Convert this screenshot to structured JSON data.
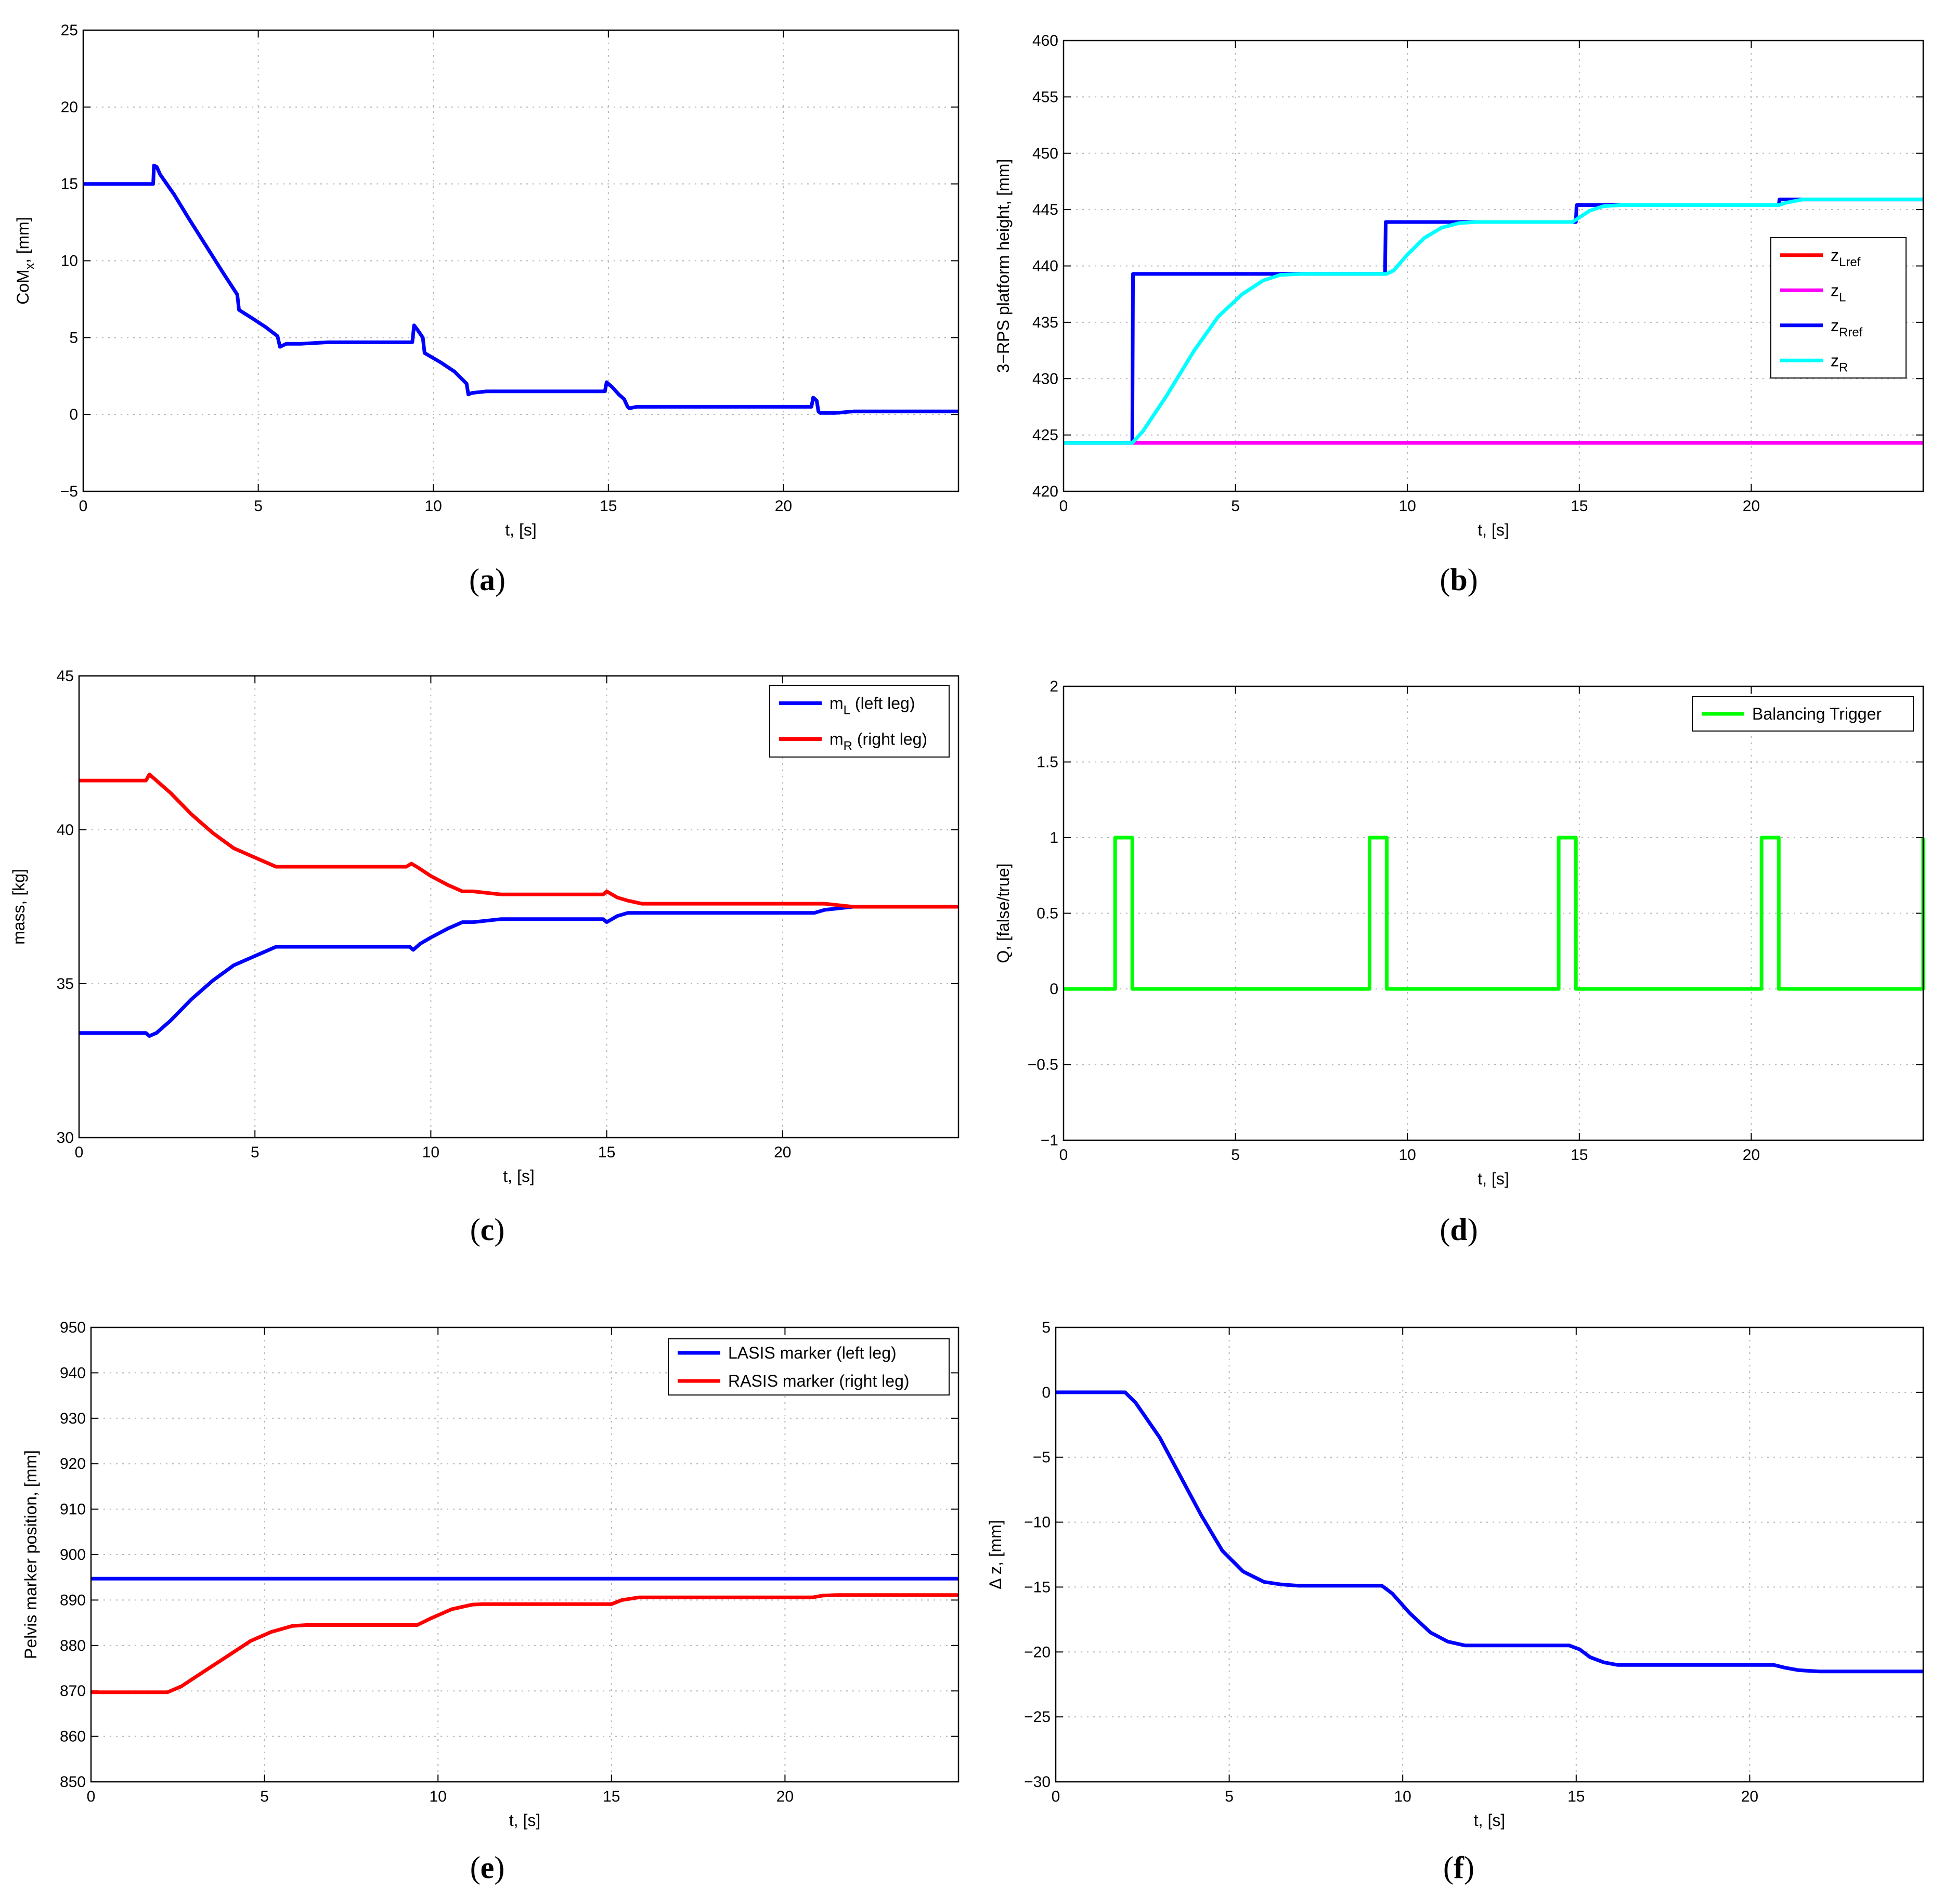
{
  "chart_data": [
    {
      "id": "a",
      "type": "line",
      "caption": "a",
      "xlabel": "t, [s]",
      "ylabel": "CoM",
      "ylabel_sub": "x",
      "ylabel_rest": ", [mm]",
      "xlim": [
        0,
        25
      ],
      "ylim": [
        -5,
        25
      ],
      "xticks": [
        0,
        5,
        10,
        15,
        20
      ],
      "yticks": [
        -5,
        0,
        5,
        10,
        15,
        20,
        25
      ],
      "legend": null,
      "series": [
        {
          "name": "CoMx",
          "color": "#0000ff",
          "x": [
            0,
            2.0,
            2.02,
            2.1,
            2.2,
            2.6,
            3.0,
            3.5,
            4.0,
            4.4,
            4.45,
            4.8,
            5.2,
            5.55,
            5.62,
            5.8,
            6.2,
            7.0,
            8.5,
            9.4,
            9.45,
            9.55,
            9.7,
            9.75,
            10.2,
            10.6,
            10.95,
            11.0,
            11.1,
            11.5,
            12.5,
            14.5,
            14.9,
            14.95,
            15.1,
            15.3,
            15.45,
            15.55,
            15.6,
            15.8,
            17.0,
            19.0,
            20.8,
            20.85,
            20.95,
            21.0,
            21.05,
            21.5,
            22.0,
            23.5,
            25
          ],
          "y": [
            15,
            15,
            16.2,
            16.1,
            15.6,
            14.3,
            12.8,
            11.0,
            9.2,
            7.8,
            6.8,
            6.3,
            5.7,
            5.1,
            4.4,
            4.6,
            4.6,
            4.7,
            4.7,
            4.7,
            5.8,
            5.5,
            5.0,
            4.0,
            3.4,
            2.8,
            2.0,
            1.3,
            1.4,
            1.5,
            1.5,
            1.5,
            1.5,
            2.1,
            1.8,
            1.3,
            1.0,
            0.5,
            0.4,
            0.5,
            0.5,
            0.5,
            0.5,
            1.1,
            0.9,
            0.2,
            0.1,
            0.1,
            0.2,
            0.2,
            0.2
          ]
        }
      ]
    },
    {
      "id": "b",
      "type": "line",
      "caption": "b",
      "xlabel": "t, [s]",
      "ylabel": "3−RPS platform height, [mm]",
      "xlim": [
        0,
        25
      ],
      "ylim": [
        420,
        460
      ],
      "xticks": [
        0,
        5,
        10,
        15,
        20
      ],
      "yticks": [
        420,
        425,
        430,
        435,
        440,
        445,
        450,
        455,
        460
      ],
      "legend": {
        "position": "right",
        "entries": [
          {
            "label": "z",
            "sub": "Lref",
            "color": "#ff0000"
          },
          {
            "label": "z",
            "sub": "L",
            "color": "#ff00ff"
          },
          {
            "label": "z",
            "sub": "Rref",
            "color": "#0000ff"
          },
          {
            "label": "z",
            "sub": "R",
            "color": "#00ffff"
          }
        ]
      },
      "series": [
        {
          "name": "zLref",
          "color": "#ff0000",
          "x": [
            0,
            25
          ],
          "y": [
            424.3,
            424.3
          ]
        },
        {
          "name": "zL",
          "color": "#ff00ff",
          "x": [
            0,
            25
          ],
          "y": [
            424.3,
            424.3
          ]
        },
        {
          "name": "zRref",
          "color": "#0000ff",
          "x": [
            0,
            2.0,
            2.02,
            9.35,
            9.37,
            14.9,
            14.92,
            20.8,
            20.82,
            25
          ],
          "y": [
            424.3,
            424.3,
            439.3,
            439.3,
            443.9,
            443.9,
            445.4,
            445.4,
            445.9,
            445.9
          ]
        },
        {
          "name": "zR",
          "color": "#00ffff",
          "x": [
            0,
            2.0,
            2.3,
            3.0,
            3.8,
            4.5,
            5.2,
            5.8,
            6.3,
            7.0,
            9.4,
            9.6,
            10.0,
            10.5,
            11.0,
            11.5,
            12.0,
            14.8,
            15.0,
            15.3,
            15.7,
            16.2,
            20.8,
            21.0,
            21.5,
            25
          ],
          "y": [
            424.3,
            424.3,
            425.3,
            428.5,
            432.5,
            435.5,
            437.5,
            438.7,
            439.2,
            439.3,
            439.3,
            439.6,
            441.0,
            442.5,
            443.4,
            443.8,
            443.9,
            443.9,
            444.3,
            444.9,
            445.3,
            445.4,
            445.4,
            445.6,
            445.9,
            445.9
          ]
        }
      ]
    },
    {
      "id": "c",
      "type": "line",
      "caption": "c",
      "xlabel": "t, [s]",
      "ylabel": "mass, [kg]",
      "xlim": [
        0,
        25
      ],
      "ylim": [
        30,
        45
      ],
      "xticks": [
        0,
        5,
        10,
        15,
        20
      ],
      "yticks": [
        30,
        35,
        40,
        45
      ],
      "legend": {
        "position": "top-right",
        "entries": [
          {
            "label": "m",
            "sub": "L",
            "rest": " (left leg)",
            "color": "#0000ff"
          },
          {
            "label": "m",
            "sub": "R",
            "rest": " (right leg)",
            "color": "#ff0000"
          }
        ]
      },
      "series": [
        {
          "name": "mL (left leg)",
          "color": "#0000ff",
          "x": [
            0,
            1.9,
            2.0,
            2.2,
            2.6,
            3.2,
            3.8,
            4.4,
            5.0,
            5.6,
            6.2,
            7.5,
            9.4,
            9.5,
            9.7,
            10.0,
            10.5,
            10.9,
            11.2,
            12.0,
            14.9,
            15.0,
            15.3,
            15.6,
            16.0,
            20.8,
            20.9,
            21.2,
            22.0,
            25
          ],
          "y": [
            33.4,
            33.4,
            33.3,
            33.4,
            33.8,
            34.5,
            35.1,
            35.6,
            35.9,
            36.2,
            36.2,
            36.2,
            36.2,
            36.1,
            36.3,
            36.5,
            36.8,
            37.0,
            37.0,
            37.1,
            37.1,
            37.0,
            37.2,
            37.3,
            37.3,
            37.3,
            37.3,
            37.4,
            37.5,
            37.5
          ]
        },
        {
          "name": "mR (right leg)",
          "color": "#ff0000",
          "x": [
            0,
            1.9,
            2.0,
            2.1,
            2.6,
            3.2,
            3.8,
            4.4,
            5.0,
            5.6,
            6.2,
            7.5,
            9.3,
            9.45,
            9.6,
            10.0,
            10.5,
            10.9,
            11.2,
            12.0,
            14.9,
            15.0,
            15.3,
            15.6,
            16.0,
            20.8,
            20.9,
            21.2,
            22.0,
            25
          ],
          "y": [
            41.6,
            41.6,
            41.8,
            41.7,
            41.2,
            40.5,
            39.9,
            39.4,
            39.1,
            38.8,
            38.8,
            38.8,
            38.8,
            38.9,
            38.8,
            38.5,
            38.2,
            38.0,
            38.0,
            37.9,
            37.9,
            38.0,
            37.8,
            37.7,
            37.6,
            37.6,
            37.6,
            37.6,
            37.5,
            37.5
          ]
        }
      ]
    },
    {
      "id": "d",
      "type": "line",
      "caption": "d",
      "xlabel": "t, [s]",
      "ylabel": "Q, [false/true]",
      "xlim": [
        0,
        25
      ],
      "ylim": [
        -1,
        2
      ],
      "xticks": [
        0,
        5,
        10,
        15,
        20
      ],
      "yticks": [
        -1,
        -0.5,
        0,
        0.5,
        1,
        1.5,
        2
      ],
      "legend": {
        "position": "top-right",
        "entries": [
          {
            "label": "Balancing Trigger",
            "color": "#00ff00"
          }
        ]
      },
      "series": [
        {
          "name": "Balancing Trigger",
          "color": "#00ff00",
          "x": [
            0,
            1.5,
            1.5,
            2.0,
            2.0,
            8.9,
            8.9,
            9.4,
            9.4,
            14.4,
            14.4,
            14.9,
            14.9,
            20.3,
            20.3,
            20.8,
            20.8,
            25,
            25
          ],
          "y": [
            0,
            0,
            1,
            1,
            0,
            0,
            1,
            1,
            0,
            0,
            1,
            1,
            0,
            0,
            1,
            1,
            0,
            0,
            1
          ]
        }
      ]
    },
    {
      "id": "e",
      "type": "line",
      "caption": "e",
      "xlabel": "t, [s]",
      "ylabel": "Pelvis marker position, [mm]",
      "xlim": [
        0,
        25
      ],
      "ylim": [
        850,
        950
      ],
      "xticks": [
        0,
        5,
        10,
        15,
        20
      ],
      "yticks": [
        850,
        860,
        870,
        880,
        890,
        900,
        910,
        920,
        930,
        940,
        950
      ],
      "legend": {
        "position": "top-right",
        "entries": [
          {
            "label": "LASIS marker (left leg)",
            "color": "#0000ff"
          },
          {
            "label": "RASIS marker (right leg)",
            "color": "#ff0000"
          }
        ]
      },
      "series": [
        {
          "name": "LASIS marker (left leg)",
          "color": "#0000ff",
          "x": [
            0,
            25
          ],
          "y": [
            894.7,
            894.7
          ]
        },
        {
          "name": "RASIS marker (right leg)",
          "color": "#ff0000",
          "x": [
            0,
            2.2,
            2.6,
            3.2,
            4.0,
            4.6,
            5.2,
            5.8,
            6.2,
            9.4,
            9.8,
            10.4,
            11.0,
            11.3,
            12.0,
            15.0,
            15.3,
            15.8,
            16.2,
            20.8,
            21.1,
            21.5,
            25
          ],
          "y": [
            869.7,
            869.7,
            871.0,
            874.0,
            878.0,
            881.0,
            883.0,
            884.3,
            884.5,
            884.5,
            886.0,
            888.0,
            889.0,
            889.1,
            889.1,
            889.1,
            890.0,
            890.6,
            890.6,
            890.6,
            891.0,
            891.1,
            891.1
          ]
        }
      ]
    },
    {
      "id": "f",
      "type": "line",
      "caption": "f",
      "xlabel": "t, [s]",
      "ylabel": "Δ z, [mm]",
      "xlim": [
        0,
        25
      ],
      "ylim": [
        -30,
        5
      ],
      "xticks": [
        0,
        5,
        10,
        15,
        20
      ],
      "yticks": [
        -30,
        -25,
        -20,
        -15,
        -10,
        -5,
        0,
        5
      ],
      "legend": null,
      "series": [
        {
          "name": "Δz",
          "color": "#0000ff",
          "x": [
            0,
            2.0,
            2.3,
            3.0,
            3.6,
            4.2,
            4.8,
            5.4,
            6.0,
            6.5,
            7.0,
            9.4,
            9.7,
            10.2,
            10.8,
            11.3,
            11.8,
            12.2,
            14.8,
            15.1,
            15.4,
            15.8,
            16.2,
            20.7,
            21.0,
            21.4,
            22.0,
            25
          ],
          "y": [
            0,
            0,
            -0.8,
            -3.5,
            -6.5,
            -9.5,
            -12.2,
            -13.8,
            -14.6,
            -14.8,
            -14.9,
            -14.9,
            -15.5,
            -17.0,
            -18.5,
            -19.2,
            -19.5,
            -19.5,
            -19.5,
            -19.8,
            -20.4,
            -20.8,
            -21.0,
            -21.0,
            -21.2,
            -21.4,
            -21.5,
            -21.5
          ]
        }
      ]
    }
  ]
}
